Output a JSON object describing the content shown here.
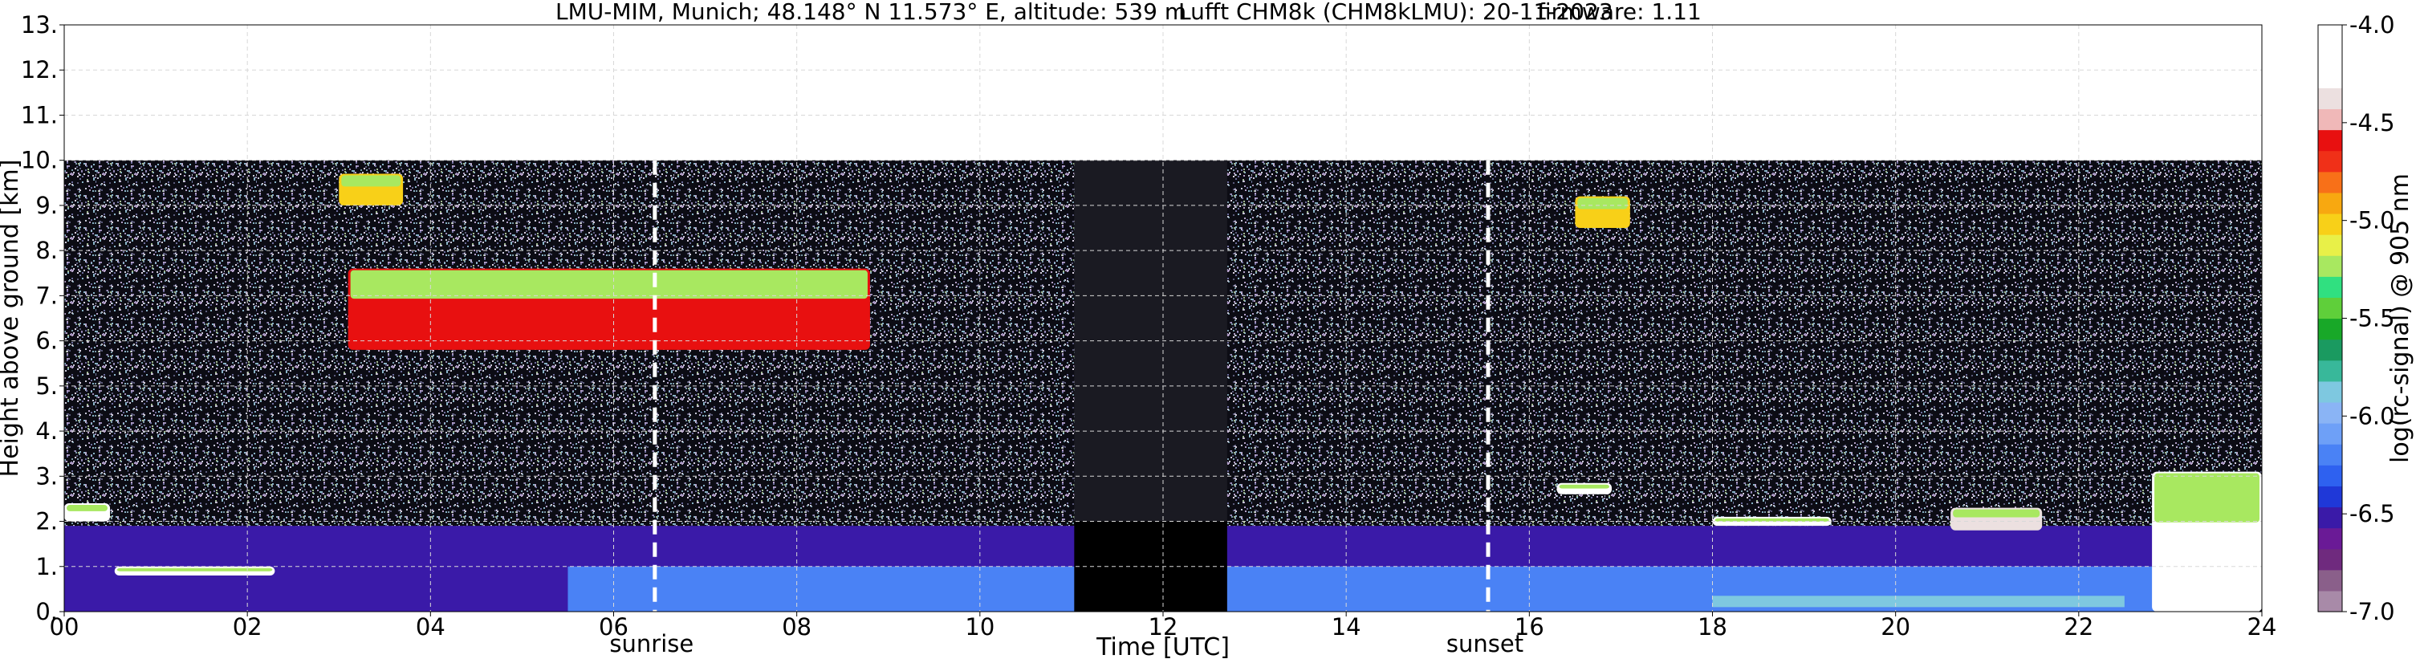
{
  "chart_data": {
    "type": "heatmap",
    "title": {
      "location": "LMU-MIM, Munich; 48.148° N 11.573° E, altitude: 539 m",
      "instrument": "Lufft CHM8k (CHM8kLMU): 20-11-2023",
      "firmware": "firmware: 1.11"
    },
    "xlabel": "Time [UTC]",
    "ylabel": "Height above ground [km]",
    "xlim": [
      0,
      24
    ],
    "ylim": [
      0,
      13
    ],
    "x_ticks": [
      0,
      2,
      4,
      6,
      8,
      10,
      12,
      14,
      16,
      18,
      20,
      22,
      24
    ],
    "x_tick_labels": [
      "00",
      "02",
      "04",
      "06",
      "08",
      "10",
      "12",
      "14",
      "16",
      "18",
      "20",
      "22",
      "24"
    ],
    "y_ticks": [
      0,
      1,
      2,
      3,
      4,
      5,
      6,
      7,
      8,
      9,
      10,
      11,
      12,
      13
    ],
    "y_tick_labels": [
      "0.",
      "1.",
      "2.",
      "3.",
      "4.",
      "5.",
      "6.",
      "7.",
      "8.",
      "9.",
      "10.",
      "11.",
      "12.",
      "13."
    ],
    "grid": true,
    "data_top_km": 10,
    "markers": [
      {
        "label": "sunrise",
        "x": 6.45
      },
      {
        "label": "sunset",
        "x": 15.55
      }
    ],
    "data_gap_x": [
      11.03,
      12.7
    ],
    "colorbar": {
      "label": "log(rc-signal) @ 905 nm",
      "range": [
        -7.0,
        -4.0
      ],
      "ticks": [
        -7.0,
        -6.5,
        -6.0,
        -5.5,
        -5.0,
        -4.5,
        -4.0
      ],
      "tick_labels": [
        "-7.0",
        "-6.5",
        "-6.0",
        "-5.5",
        "-5.0",
        "-4.5",
        "-4.0"
      ],
      "colors": [
        "#a88aa8",
        "#8a5f8a",
        "#6f2a7e",
        "#6a1a96",
        "#3a1aa8",
        "#1f38d8",
        "#2e61f0",
        "#4a82f5",
        "#6ea0f7",
        "#8ab4f5",
        "#7ec8e0",
        "#38b89a",
        "#1a9a60",
        "#18a828",
        "#5fcf3a",
        "#30e080",
        "#a8e860",
        "#e8f048",
        "#f8d018",
        "#f8a810",
        "#f87018",
        "#f03018",
        "#e81010",
        "#f0b8b8",
        "#ece0e0",
        "#ffffff",
        "#ffffff",
        "#ffffff"
      ]
    },
    "features": [
      {
        "name": "boundary-layer-aerosol",
        "x": [
          0.0,
          23.0
        ],
        "y": [
          0.0,
          1.9
        ],
        "value": -6.3
      },
      {
        "name": "low-cloud-early",
        "x": [
          0.55,
          2.3
        ],
        "y": [
          0.8,
          1.0
        ],
        "value": -4.2
      },
      {
        "name": "cloud-near-2.2km",
        "x": [
          0.0,
          0.5
        ],
        "y": [
          2.0,
          2.4
        ],
        "value": -4.3
      },
      {
        "name": "altocumulus",
        "x": [
          3.1,
          8.8
        ],
        "y": [
          5.8,
          7.6
        ],
        "value": -4.6
      },
      {
        "name": "cirrus-early",
        "x": [
          3.0,
          3.7
        ],
        "y": [
          9.0,
          9.7
        ],
        "value": -5.0
      },
      {
        "name": "cirrus-late",
        "x": [
          16.5,
          17.1
        ],
        "y": [
          8.5,
          9.2
        ],
        "value": -5.0
      },
      {
        "name": "cloud-16.3h",
        "x": [
          16.3,
          16.9
        ],
        "y": [
          2.6,
          2.85
        ],
        "value": -4.3
      },
      {
        "name": "cloud-evening",
        "x": [
          18.0,
          19.3
        ],
        "y": [
          1.9,
          2.1
        ],
        "value": -4.3
      },
      {
        "name": "cloud-21h",
        "x": [
          20.6,
          21.6
        ],
        "y": [
          1.8,
          2.3
        ],
        "value": -4.4
      },
      {
        "name": "cloud-23h",
        "x": [
          22.8,
          24.0
        ],
        "y": [
          0.0,
          3.1
        ],
        "value": -4.2
      }
    ]
  }
}
